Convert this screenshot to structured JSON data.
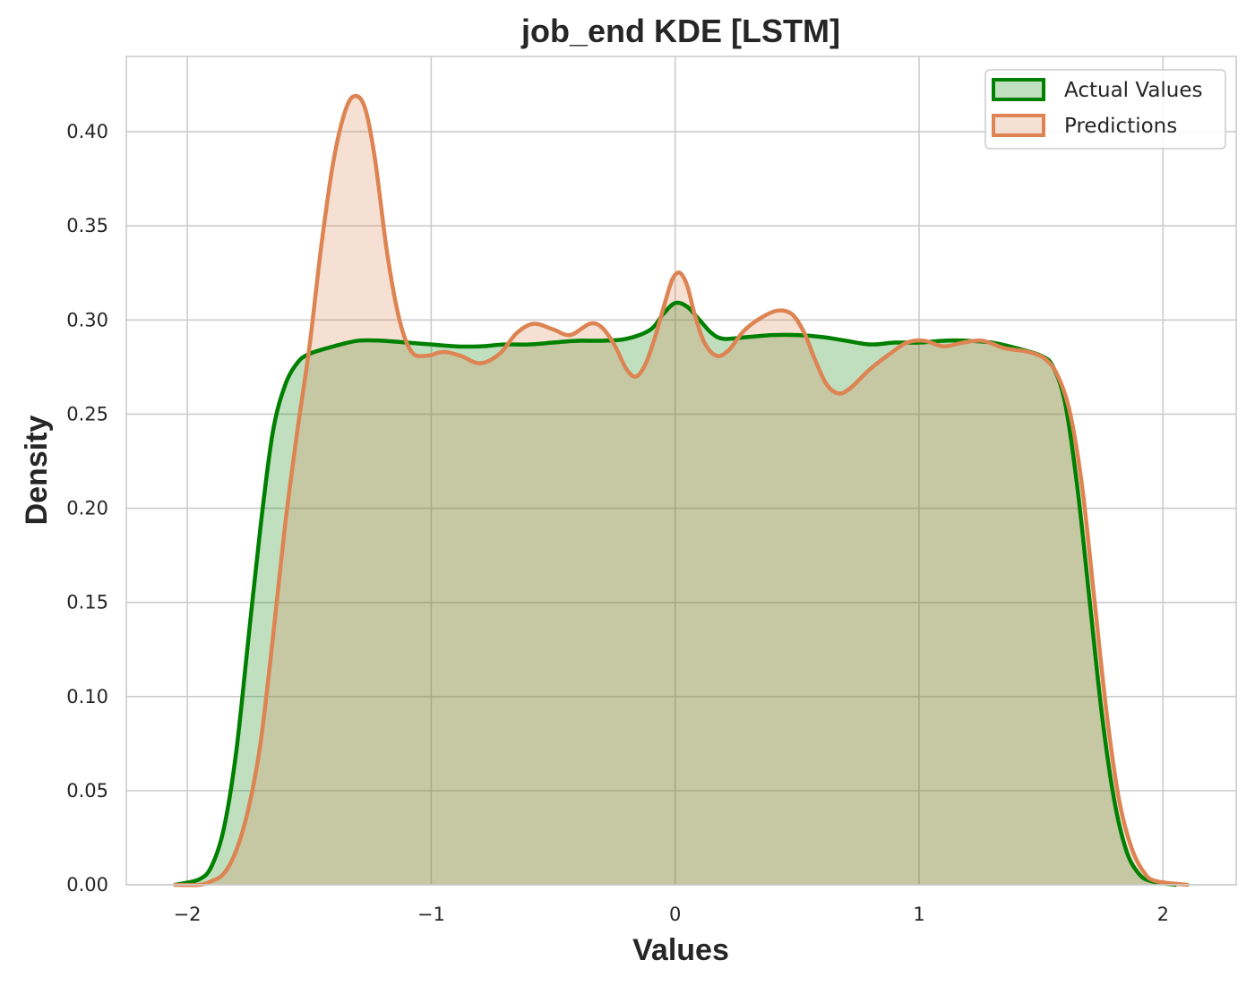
{
  "chart_data": {
    "type": "area",
    "title": "job_end KDE [LSTM]",
    "xlabel": "Values",
    "ylabel": "Density",
    "xlim": [
      -2.25,
      2.3
    ],
    "ylim": [
      0,
      0.44
    ],
    "xticks": [
      -2,
      -1,
      0,
      1,
      2
    ],
    "xtick_labels": [
      "−2",
      "−1",
      "0",
      "1",
      "2"
    ],
    "yticks": [
      0.0,
      0.05,
      0.1,
      0.15,
      0.2,
      0.25,
      0.3,
      0.35,
      0.4
    ],
    "ytick_labels": [
      "0.00",
      "0.05",
      "0.10",
      "0.15",
      "0.20",
      "0.25",
      "0.30",
      "0.35",
      "0.40"
    ],
    "grid": true,
    "legend_position": "top-right",
    "series": [
      {
        "name": "Actual Values",
        "line_color": "#008000",
        "fill_color": "#008000",
        "points": [
          [
            -2.05,
            0.0
          ],
          [
            -1.95,
            0.003
          ],
          [
            -1.9,
            0.01
          ],
          [
            -1.85,
            0.03
          ],
          [
            -1.8,
            0.07
          ],
          [
            -1.75,
            0.13
          ],
          [
            -1.7,
            0.19
          ],
          [
            -1.65,
            0.24
          ],
          [
            -1.6,
            0.265
          ],
          [
            -1.55,
            0.277
          ],
          [
            -1.5,
            0.282
          ],
          [
            -1.4,
            0.286
          ],
          [
            -1.3,
            0.289
          ],
          [
            -1.2,
            0.289
          ],
          [
            -1.1,
            0.288
          ],
          [
            -1.0,
            0.287
          ],
          [
            -0.9,
            0.286
          ],
          [
            -0.8,
            0.286
          ],
          [
            -0.7,
            0.287
          ],
          [
            -0.6,
            0.287
          ],
          [
            -0.5,
            0.288
          ],
          [
            -0.4,
            0.289
          ],
          [
            -0.3,
            0.289
          ],
          [
            -0.2,
            0.29
          ],
          [
            -0.1,
            0.295
          ],
          [
            -0.05,
            0.303
          ],
          [
            0.0,
            0.309
          ],
          [
            0.05,
            0.307
          ],
          [
            0.1,
            0.3
          ],
          [
            0.15,
            0.293
          ],
          [
            0.2,
            0.29
          ],
          [
            0.3,
            0.291
          ],
          [
            0.4,
            0.292
          ],
          [
            0.5,
            0.292
          ],
          [
            0.6,
            0.291
          ],
          [
            0.7,
            0.289
          ],
          [
            0.8,
            0.287
          ],
          [
            0.9,
            0.288
          ],
          [
            1.0,
            0.288
          ],
          [
            1.1,
            0.289
          ],
          [
            1.2,
            0.289
          ],
          [
            1.3,
            0.288
          ],
          [
            1.4,
            0.285
          ],
          [
            1.5,
            0.281
          ],
          [
            1.55,
            0.275
          ],
          [
            1.6,
            0.255
          ],
          [
            1.65,
            0.21
          ],
          [
            1.7,
            0.15
          ],
          [
            1.75,
            0.09
          ],
          [
            1.8,
            0.045
          ],
          [
            1.85,
            0.018
          ],
          [
            1.9,
            0.006
          ],
          [
            1.95,
            0.002
          ],
          [
            2.05,
            0.0
          ]
        ]
      },
      {
        "name": "Predictions",
        "line_color": "#dd8452",
        "fill_color": "#dd8452",
        "points": [
          [
            -2.05,
            0.0
          ],
          [
            -1.95,
            0.0
          ],
          [
            -1.9,
            0.002
          ],
          [
            -1.85,
            0.006
          ],
          [
            -1.8,
            0.018
          ],
          [
            -1.75,
            0.04
          ],
          [
            -1.7,
            0.075
          ],
          [
            -1.65,
            0.13
          ],
          [
            -1.6,
            0.19
          ],
          [
            -1.55,
            0.24
          ],
          [
            -1.5,
            0.285
          ],
          [
            -1.45,
            0.34
          ],
          [
            -1.4,
            0.385
          ],
          [
            -1.35,
            0.412
          ],
          [
            -1.31,
            0.419
          ],
          [
            -1.27,
            0.412
          ],
          [
            -1.23,
            0.385
          ],
          [
            -1.18,
            0.335
          ],
          [
            -1.13,
            0.3
          ],
          [
            -1.08,
            0.283
          ],
          [
            -1.02,
            0.281
          ],
          [
            -0.95,
            0.283
          ],
          [
            -0.88,
            0.281
          ],
          [
            -0.8,
            0.277
          ],
          [
            -0.72,
            0.282
          ],
          [
            -0.65,
            0.293
          ],
          [
            -0.58,
            0.298
          ],
          [
            -0.5,
            0.295
          ],
          [
            -0.43,
            0.292
          ],
          [
            -0.35,
            0.298
          ],
          [
            -0.3,
            0.296
          ],
          [
            -0.25,
            0.287
          ],
          [
            -0.2,
            0.274
          ],
          [
            -0.16,
            0.27
          ],
          [
            -0.12,
            0.277
          ],
          [
            -0.08,
            0.292
          ],
          [
            -0.04,
            0.31
          ],
          [
            -0.01,
            0.322
          ],
          [
            0.02,
            0.325
          ],
          [
            0.05,
            0.318
          ],
          [
            0.08,
            0.303
          ],
          [
            0.12,
            0.288
          ],
          [
            0.17,
            0.281
          ],
          [
            0.22,
            0.284
          ],
          [
            0.28,
            0.294
          ],
          [
            0.35,
            0.301
          ],
          [
            0.42,
            0.305
          ],
          [
            0.48,
            0.303
          ],
          [
            0.53,
            0.293
          ],
          [
            0.57,
            0.28
          ],
          [
            0.62,
            0.266
          ],
          [
            0.67,
            0.261
          ],
          [
            0.72,
            0.264
          ],
          [
            0.8,
            0.274
          ],
          [
            0.88,
            0.282
          ],
          [
            0.95,
            0.288
          ],
          [
            1.02,
            0.289
          ],
          [
            1.1,
            0.286
          ],
          [
            1.18,
            0.288
          ],
          [
            1.26,
            0.289
          ],
          [
            1.35,
            0.285
          ],
          [
            1.45,
            0.283
          ],
          [
            1.52,
            0.279
          ],
          [
            1.57,
            0.27
          ],
          [
            1.62,
            0.25
          ],
          [
            1.67,
            0.21
          ],
          [
            1.72,
            0.15
          ],
          [
            1.77,
            0.09
          ],
          [
            1.82,
            0.045
          ],
          [
            1.87,
            0.02
          ],
          [
            1.92,
            0.007
          ],
          [
            1.97,
            0.002
          ],
          [
            2.1,
            0.0
          ]
        ]
      }
    ]
  }
}
